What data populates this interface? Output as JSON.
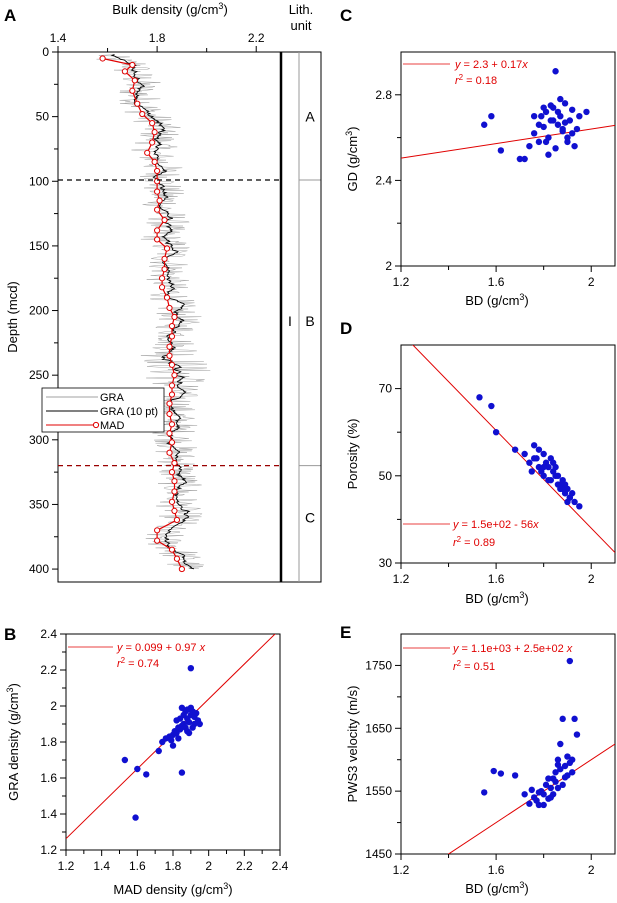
{
  "chart_data": [
    {
      "panel": "A",
      "type": "line",
      "xlabel": "Bulk density (g/cm",
      "xlabel_sup": "3",
      "xlabel_end": ")",
      "ylabel": "Depth (mcd)",
      "xlim": [
        1.4,
        2.3
      ],
      "ylim": [
        0,
        410
      ],
      "xticks": [
        "1.4",
        "1.8",
        "2.2"
      ],
      "xtick_values": [
        1.4,
        1.8,
        2.2
      ],
      "yticks": [
        "0",
        "50",
        "100",
        "150",
        "200",
        "250",
        "300",
        "350",
        "400"
      ],
      "ytick_values": [
        0,
        50,
        100,
        150,
        200,
        250,
        300,
        350,
        400
      ],
      "legend_position": "center-left",
      "series": [
        {
          "name": "GRA",
          "color": "#a0a0a0"
        },
        {
          "name": "GRA (10 pt)",
          "color": "#000000"
        },
        {
          "name": "MAD",
          "color": "#e00000",
          "depth": [
            5,
            10,
            15,
            22,
            30,
            40,
            48,
            55,
            62,
            70,
            78,
            85,
            92,
            100,
            108,
            115,
            122,
            130,
            138,
            145,
            152,
            160,
            168,
            175,
            182,
            190,
            198,
            205,
            212,
            220,
            228,
            235,
            242,
            250,
            258,
            265,
            272,
            280,
            288,
            295,
            302,
            310,
            318,
            325,
            332,
            340,
            348,
            355,
            362,
            370,
            378,
            385,
            392,
            400
          ],
          "density": [
            1.58,
            1.7,
            1.67,
            1.71,
            1.7,
            1.72,
            1.74,
            1.78,
            1.79,
            1.78,
            1.76,
            1.79,
            1.8,
            1.8,
            1.8,
            1.81,
            1.8,
            1.83,
            1.8,
            1.8,
            1.84,
            1.83,
            1.83,
            1.82,
            1.82,
            1.84,
            1.85,
            1.87,
            1.86,
            1.86,
            1.85,
            1.85,
            1.86,
            1.87,
            1.86,
            1.86,
            1.85,
            1.85,
            1.86,
            1.85,
            1.86,
            1.85,
            1.87,
            1.86,
            1.87,
            1.87,
            1.86,
            1.87,
            1.88,
            1.8,
            1.8,
            1.86,
            1.88,
            1.9
          ]
        }
      ],
      "boundaries": [
        {
          "depth": 99,
          "color": "#000000"
        },
        {
          "depth": 320,
          "color": "#990000"
        }
      ],
      "lith_header": [
        "Lith.",
        "unit"
      ],
      "lith_units": [
        {
          "label": "I",
          "depth": 208
        },
        {
          "label": "A",
          "depth": 50
        },
        {
          "label": "B",
          "depth": 208
        },
        {
          "label": "C",
          "depth": 360
        }
      ]
    },
    {
      "panel": "B",
      "type": "scatter",
      "xlabel": "MAD density (g/cm",
      "xlabel_sup": "3",
      "xlabel_end": ")",
      "ylabel": "GRA density (g/cm",
      "ylabel_sup": "3",
      "ylabel_end": ")",
      "xlim": [
        1.2,
        2.4
      ],
      "ylim": [
        1.2,
        2.4
      ],
      "xticks": [
        "1.2",
        "1.4",
        "1.6",
        "1.8",
        "2",
        "2.2",
        "2.4"
      ],
      "xtick_values": [
        1.2,
        1.4,
        1.6,
        1.8,
        2.0,
        2.2,
        2.4
      ],
      "yticks": [
        "1.2",
        "1.4",
        "1.6",
        "1.8",
        "2",
        "2.2",
        "2.4"
      ],
      "ytick_values": [
        1.2,
        1.4,
        1.6,
        1.8,
        2.0,
        2.2,
        2.4
      ],
      "fit": {
        "intercept": 0.099,
        "slope": 0.97,
        "eq_y": "y",
        "eq_rhs": " = 0.099 + 0.97 ",
        "eq_x": "x",
        "r2_label": "r",
        "r2_sup": "2",
        "r2_value": " = 0.74"
      },
      "x": [
        1.53,
        1.6,
        1.65,
        1.59,
        1.72,
        1.74,
        1.76,
        1.78,
        1.79,
        1.8,
        1.81,
        1.82,
        1.83,
        1.84,
        1.85,
        1.86,
        1.87,
        1.88,
        1.89,
        1.9,
        1.91,
        1.92,
        1.93,
        1.95,
        1.85,
        1.9,
        1.8,
        1.82,
        1.86,
        1.88,
        1.9,
        1.92,
        1.84,
        1.87,
        1.89,
        1.83,
        1.85,
        1.88,
        1.91,
        1.94
      ],
      "y": [
        1.7,
        1.65,
        1.62,
        1.38,
        1.75,
        1.8,
        1.82,
        1.83,
        1.81,
        1.84,
        1.86,
        1.85,
        1.88,
        1.87,
        1.89,
        1.9,
        1.88,
        1.93,
        1.91,
        1.95,
        1.97,
        1.94,
        1.96,
        1.9,
        1.63,
        2.21,
        1.78,
        1.92,
        1.95,
        1.86,
        1.99,
        1.9,
        1.93,
        1.97,
        1.85,
        1.82,
        1.99,
        1.98,
        1.88,
        1.92
      ]
    },
    {
      "panel": "C",
      "type": "scatter",
      "xlabel": "BD (g/cm",
      "xlabel_sup": "3",
      "xlabel_end": ")",
      "ylabel": "GD (g/cm",
      "ylabel_sup": "3",
      "ylabel_end": ")",
      "xlim": [
        1.2,
        2.1
      ],
      "ylim": [
        2.0,
        3.0
      ],
      "xticks": [
        "1.2",
        "1.6",
        "2"
      ],
      "xtick_values": [
        1.2,
        1.6,
        2.0
      ],
      "yticks": [
        "2",
        "2.4",
        "2.8"
      ],
      "ytick_values": [
        2.0,
        2.4,
        2.8
      ],
      "fit": {
        "intercept": 2.3,
        "slope": 0.17,
        "eq_y": "y",
        "eq_rhs": " = 2.3 + 0.17",
        "eq_x": "x",
        "r2_label": "r",
        "r2_sup": "2",
        "r2_value": " = 0.18"
      },
      "x": [
        1.55,
        1.58,
        1.62,
        1.7,
        1.72,
        1.74,
        1.76,
        1.78,
        1.79,
        1.8,
        1.81,
        1.82,
        1.83,
        1.84,
        1.85,
        1.86,
        1.87,
        1.88,
        1.89,
        1.9,
        1.91,
        1.92,
        1.93,
        1.94,
        1.95,
        1.98,
        1.85,
        1.8,
        1.78,
        1.82,
        1.87,
        1.9,
        1.76,
        1.84,
        1.88,
        1.92,
        1.86,
        1.83,
        1.81,
        1.89
      ],
      "y": [
        2.66,
        2.7,
        2.54,
        2.5,
        2.5,
        2.56,
        2.62,
        2.58,
        2.7,
        2.65,
        2.72,
        2.6,
        2.68,
        2.74,
        2.91,
        2.66,
        2.7,
        2.63,
        2.76,
        2.6,
        2.68,
        2.73,
        2.56,
        2.64,
        2.7,
        2.72,
        2.55,
        2.74,
        2.66,
        2.52,
        2.78,
        2.58,
        2.7,
        2.68,
        2.64,
        2.62,
        2.72,
        2.75,
        2.58,
        2.67
      ]
    },
    {
      "panel": "D",
      "type": "scatter",
      "xlabel": "BD (g/cm",
      "xlabel_sup": "3",
      "xlabel_end": ")",
      "ylabel": "Porosity (%)",
      "xlim": [
        1.2,
        2.1
      ],
      "ylim": [
        30,
        80
      ],
      "xticks": [
        "1.2",
        "1.6",
        "2"
      ],
      "xtick_values": [
        1.2,
        1.6,
        2.0
      ],
      "yticks": [
        "30",
        "50",
        "70"
      ],
      "ytick_values": [
        30,
        50,
        70
      ],
      "fit": {
        "intercept": 150,
        "slope": -56,
        "eq_y": "y",
        "eq_rhs": " = 1.5e+02 - 56",
        "eq_x": "x",
        "r2_label": "r",
        "r2_sup": "2",
        "r2_value": " = 0.89"
      },
      "x": [
        1.53,
        1.58,
        1.6,
        1.68,
        1.72,
        1.74,
        1.76,
        1.77,
        1.78,
        1.79,
        1.8,
        1.81,
        1.82,
        1.83,
        1.84,
        1.85,
        1.86,
        1.87,
        1.88,
        1.89,
        1.9,
        1.91,
        1.92,
        1.93,
        1.95,
        1.8,
        1.83,
        1.86,
        1.89,
        1.78,
        1.75,
        1.82,
        1.85,
        1.88,
        1.91,
        1.84,
        1.87,
        1.9,
        1.8,
        1.76
      ],
      "y": [
        68,
        66,
        60,
        56,
        55,
        53,
        57,
        54,
        52,
        51,
        50,
        53,
        52,
        49,
        51,
        50,
        48,
        47,
        49,
        46,
        47,
        45,
        46,
        44,
        43,
        55,
        54,
        50,
        48,
        56,
        51,
        49,
        52,
        47,
        45,
        53,
        48,
        44,
        52,
        54
      ]
    },
    {
      "panel": "E",
      "type": "scatter",
      "xlabel": "BD (g/cm",
      "xlabel_sup": "3",
      "xlabel_end": ")",
      "ylabel": "PWS3 velocity (m/s)",
      "xlim": [
        1.2,
        2.1
      ],
      "ylim": [
        1450,
        1800
      ],
      "xticks": [
        "1.2",
        "1.6",
        "2"
      ],
      "xtick_values": [
        1.2,
        1.6,
        2.0
      ],
      "yticks": [
        "1450",
        "1550",
        "1650",
        "1750"
      ],
      "ytick_values": [
        1450,
        1550,
        1650,
        1750
      ],
      "fit": {
        "intercept": 1100,
        "slope": 250,
        "eq_y": "y",
        "eq_rhs": " = 1.1e+03 + 2.5e+02 ",
        "eq_x": "x",
        "r2_label": "r",
        "r2_sup": "2",
        "r2_value": " = 0.51"
      },
      "x": [
        1.55,
        1.59,
        1.62,
        1.68,
        1.72,
        1.74,
        1.76,
        1.77,
        1.78,
        1.79,
        1.8,
        1.81,
        1.82,
        1.83,
        1.84,
        1.85,
        1.86,
        1.87,
        1.88,
        1.89,
        1.9,
        1.91,
        1.92,
        1.93,
        1.94,
        1.75,
        1.8,
        1.84,
        1.88,
        1.92,
        1.86,
        1.82,
        1.78,
        1.9,
        1.87,
        1.85,
        1.83,
        1.91,
        1.89,
        1.86
      ],
      "y": [
        1548,
        1582,
        1578,
        1575,
        1545,
        1530,
        1540,
        1535,
        1528,
        1550,
        1545,
        1560,
        1538,
        1555,
        1570,
        1580,
        1600,
        1625,
        1665,
        1590,
        1575,
        1757,
        1600,
        1665,
        1640,
        1552,
        1528,
        1545,
        1560,
        1580,
        1592,
        1570,
        1548,
        1605,
        1585,
        1565,
        1540,
        1595,
        1572,
        1555
      ]
    }
  ]
}
